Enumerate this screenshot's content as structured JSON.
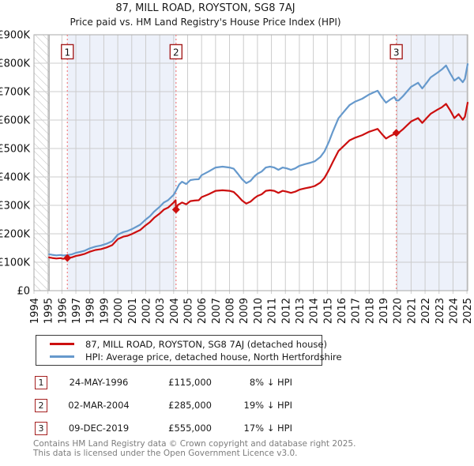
{
  "title": "87, MILL ROAD, ROYSTON, SG8 7AJ",
  "subtitle": "Price paid vs. HM Land Registry's House Price Index (HPI)",
  "legend": [
    {
      "label": "87, MILL ROAD, ROYSTON, SG8 7AJ (detached house)",
      "color": "#cc0f0f"
    },
    {
      "label": "HPI: Average price, detached house, North Hertfordshire",
      "color": "#6699cc"
    }
  ],
  "sales_table": [
    {
      "num": "1",
      "date": "24-MAY-1996",
      "price": "£115,000",
      "hpi_diff": "8% ↓ HPI"
    },
    {
      "num": "2",
      "date": "02-MAR-2004",
      "price": "£285,000",
      "hpi_diff": "19% ↓ HPI"
    },
    {
      "num": "3",
      "date": "09-DEC-2019",
      "price": "£555,000",
      "hpi_diff": "17% ↓ HPI"
    }
  ],
  "footer": {
    "line1": "Contains HM Land Registry data © Crown copyright and database right 2025.",
    "line2": "This data is licensed under the Open Government Licence v3.0."
  },
  "chart_data": {
    "type": "line",
    "title": "87, MILL ROAD, ROYSTON, SG8 7AJ",
    "subtitle": "Price paid vs. HM Land Registry's House Price Index (HPI)",
    "xlabel": "",
    "ylabel": "Price (GBP)",
    "grid": true,
    "legend_position": "bottom",
    "x_axis": {
      "min": 1994,
      "max": 2025.05,
      "tick_labels": [
        "1994",
        "1995",
        "1996",
        "1997",
        "1998",
        "1999",
        "2000",
        "2001",
        "2002",
        "2003",
        "2004",
        "2005",
        "2006",
        "2007",
        "2008",
        "2009",
        "2010",
        "2011",
        "2012",
        "2013",
        "2014",
        "2015",
        "2016",
        "2017",
        "2018",
        "2019",
        "2020",
        "2021",
        "2022",
        "2023",
        "2024",
        "2025"
      ]
    },
    "y_axis": {
      "min": 0,
      "max": 900000,
      "tick_step": 100000,
      "tick_labels": [
        "£0",
        "£100K",
        "£200K",
        "£300K",
        "£400K",
        "£500K",
        "£600K",
        "£700K",
        "£800K",
        "£900K"
      ]
    },
    "hatched_region": [
      1994,
      1995.08
    ],
    "owned_regions": [
      [
        1996.39,
        2004.17
      ],
      [
        2019.94,
        2025.05
      ]
    ],
    "sale_markers": [
      {
        "num": "1",
        "year": 1996.39,
        "price": 115000,
        "date": "24-MAY-1996"
      },
      {
        "num": "2",
        "year": 2004.17,
        "price": 285000,
        "date": "02-MAR-2004"
      },
      {
        "num": "3",
        "year": 2019.94,
        "price": 555000,
        "date": "09-DEC-2019"
      }
    ],
    "colors": {
      "property_line": "#cc0f0f",
      "hpi_line": "#6699cc",
      "owned_region_fill": "#edf1fa",
      "sale_vline": "#f08080",
      "marker_box_border": "#a52020",
      "grid": "#cccccc",
      "plot_border": "#aaaaaa",
      "hatch_line": "#bbbbbb",
      "hatch_edge": "#888888"
    },
    "series": [
      {
        "name": "HPI: Average price, detached house, North Hertfordshire",
        "color": "#6699cc",
        "points": [
          [
            1995.08,
            128000
          ],
          [
            1995.3,
            126000
          ],
          [
            1995.6,
            124000
          ],
          [
            1995.9,
            125500
          ],
          [
            1996.1,
            123500
          ],
          [
            1996.39,
            125000
          ],
          [
            1996.7,
            127500
          ],
          [
            1997.0,
            133000
          ],
          [
            1997.3,
            136000
          ],
          [
            1997.6,
            140000
          ],
          [
            1998.0,
            149000
          ],
          [
            1998.4,
            155000
          ],
          [
            1998.8,
            159000
          ],
          [
            1999.2,
            165000
          ],
          [
            1999.6,
            174000
          ],
          [
            2000.0,
            197000
          ],
          [
            2000.4,
            206000
          ],
          [
            2000.7,
            210000
          ],
          [
            2001.0,
            216000
          ],
          [
            2001.3,
            224000
          ],
          [
            2001.6,
            232000
          ],
          [
            2002.0,
            250000
          ],
          [
            2002.3,
            262000
          ],
          [
            2002.6,
            278000
          ],
          [
            2003.0,
            295000
          ],
          [
            2003.3,
            310000
          ],
          [
            2003.6,
            318000
          ],
          [
            2004.0,
            337000
          ],
          [
            2004.17,
            352000
          ],
          [
            2004.4,
            374000
          ],
          [
            2004.6,
            383000
          ],
          [
            2004.9,
            375000
          ],
          [
            2005.2,
            389000
          ],
          [
            2005.5,
            391000
          ],
          [
            2005.8,
            392000
          ],
          [
            2006.0,
            406000
          ],
          [
            2006.5,
            419000
          ],
          [
            2007.0,
            433000
          ],
          [
            2007.5,
            436000
          ],
          [
            2008.0,
            433000
          ],
          [
            2008.3,
            429000
          ],
          [
            2008.6,
            411000
          ],
          [
            2008.9,
            392000
          ],
          [
            2009.2,
            378000
          ],
          [
            2009.5,
            386000
          ],
          [
            2009.8,
            403000
          ],
          [
            2010.0,
            411000
          ],
          [
            2010.3,
            419000
          ],
          [
            2010.6,
            433000
          ],
          [
            2010.9,
            436000
          ],
          [
            2011.2,
            433000
          ],
          [
            2011.5,
            425000
          ],
          [
            2011.8,
            433000
          ],
          [
            2012.1,
            430000
          ],
          [
            2012.4,
            425000
          ],
          [
            2012.7,
            430000
          ],
          [
            2013.0,
            439000
          ],
          [
            2013.4,
            445000
          ],
          [
            2013.8,
            450000
          ],
          [
            2014.1,
            455000
          ],
          [
            2014.5,
            470000
          ],
          [
            2014.8,
            490000
          ],
          [
            2015.1,
            522000
          ],
          [
            2015.4,
            560000
          ],
          [
            2015.8,
            606000
          ],
          [
            2016.2,
            630000
          ],
          [
            2016.6,
            653000
          ],
          [
            2017.0,
            665000
          ],
          [
            2017.5,
            675000
          ],
          [
            2018.0,
            690000
          ],
          [
            2018.3,
            697000
          ],
          [
            2018.6,
            703000
          ],
          [
            2018.9,
            680000
          ],
          [
            2019.2,
            661000
          ],
          [
            2019.5,
            672000
          ],
          [
            2019.8,
            681000
          ],
          [
            2019.94,
            669000
          ],
          [
            2020.1,
            669000
          ],
          [
            2020.4,
            683000
          ],
          [
            2020.7,
            700000
          ],
          [
            2021.0,
            717000
          ],
          [
            2021.5,
            731000
          ],
          [
            2021.8,
            711000
          ],
          [
            2022.1,
            730000
          ],
          [
            2022.4,
            750000
          ],
          [
            2022.9,
            767000
          ],
          [
            2023.2,
            778000
          ],
          [
            2023.5,
            792000
          ],
          [
            2023.8,
            764000
          ],
          [
            2024.1,
            739000
          ],
          [
            2024.4,
            750000
          ],
          [
            2024.7,
            733000
          ],
          [
            2024.85,
            745000
          ],
          [
            2025.05,
            797000
          ]
        ]
      },
      {
        "name": "87, MILL ROAD, ROYSTON, SG8 7AJ (detached house)",
        "color": "#cc0f0f",
        "points": [
          [
            1995.08,
            117000
          ],
          [
            1995.3,
            115000
          ],
          [
            1995.6,
            113000
          ],
          [
            1995.9,
            114500
          ],
          [
            1996.1,
            112000
          ],
          [
            1996.39,
            115000
          ],
          [
            1996.7,
            117000
          ],
          [
            1997.0,
            122000
          ],
          [
            1997.3,
            125000
          ],
          [
            1997.6,
            129000
          ],
          [
            1998.0,
            137000
          ],
          [
            1998.4,
            143000
          ],
          [
            1998.8,
            146000
          ],
          [
            1999.2,
            152000
          ],
          [
            1999.6,
            160000
          ],
          [
            2000.0,
            181000
          ],
          [
            2000.4,
            190000
          ],
          [
            2000.7,
            193000
          ],
          [
            2001.0,
            199000
          ],
          [
            2001.3,
            206000
          ],
          [
            2001.6,
            213000
          ],
          [
            2002.0,
            230000
          ],
          [
            2002.3,
            241000
          ],
          [
            2002.6,
            256000
          ],
          [
            2003.0,
            271000
          ],
          [
            2003.3,
            285000
          ],
          [
            2003.6,
            292000
          ],
          [
            2004.0,
            310000
          ],
          [
            2004.14,
            318000
          ],
          [
            2004.17,
            285000
          ],
          [
            2004.3,
            301000
          ],
          [
            2004.6,
            310000
          ],
          [
            2004.9,
            304000
          ],
          [
            2005.2,
            315000
          ],
          [
            2005.5,
            317000
          ],
          [
            2005.8,
            318000
          ],
          [
            2006.0,
            329000
          ],
          [
            2006.5,
            339000
          ],
          [
            2007.0,
            351000
          ],
          [
            2007.5,
            353000
          ],
          [
            2008.0,
            351000
          ],
          [
            2008.3,
            347000
          ],
          [
            2008.6,
            333000
          ],
          [
            2008.9,
            317000
          ],
          [
            2009.2,
            306000
          ],
          [
            2009.5,
            313000
          ],
          [
            2009.8,
            326000
          ],
          [
            2010.0,
            333000
          ],
          [
            2010.3,
            339000
          ],
          [
            2010.6,
            351000
          ],
          [
            2010.9,
            353000
          ],
          [
            2011.2,
            351000
          ],
          [
            2011.5,
            344000
          ],
          [
            2011.8,
            351000
          ],
          [
            2012.1,
            348000
          ],
          [
            2012.4,
            344000
          ],
          [
            2012.7,
            348000
          ],
          [
            2013.0,
            355000
          ],
          [
            2013.4,
            360000
          ],
          [
            2013.8,
            364000
          ],
          [
            2014.1,
            368000
          ],
          [
            2014.5,
            380000
          ],
          [
            2014.8,
            397000
          ],
          [
            2015.1,
            423000
          ],
          [
            2015.4,
            453000
          ],
          [
            2015.8,
            491000
          ],
          [
            2016.2,
            510000
          ],
          [
            2016.6,
            529000
          ],
          [
            2017.0,
            538000
          ],
          [
            2017.5,
            547000
          ],
          [
            2018.0,
            559000
          ],
          [
            2018.3,
            564000
          ],
          [
            2018.6,
            569000
          ],
          [
            2018.9,
            551000
          ],
          [
            2019.2,
            535000
          ],
          [
            2019.5,
            544000
          ],
          [
            2019.8,
            551000
          ],
          [
            2019.94,
            555000
          ],
          [
            2020.1,
            555000
          ],
          [
            2020.4,
            567000
          ],
          [
            2020.7,
            581000
          ],
          [
            2021.0,
            595000
          ],
          [
            2021.5,
            607000
          ],
          [
            2021.8,
            590000
          ],
          [
            2022.1,
            606000
          ],
          [
            2022.4,
            622000
          ],
          [
            2022.9,
            637000
          ],
          [
            2023.2,
            645000
          ],
          [
            2023.5,
            657000
          ],
          [
            2023.8,
            634000
          ],
          [
            2024.1,
            607000
          ],
          [
            2024.4,
            621000
          ],
          [
            2024.7,
            601000
          ],
          [
            2024.85,
            612000
          ],
          [
            2025.05,
            661000
          ]
        ]
      }
    ]
  }
}
